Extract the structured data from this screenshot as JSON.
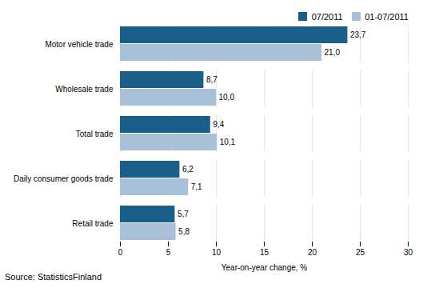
{
  "chart_data": {
    "type": "bar",
    "orientation": "horizontal",
    "categories": [
      "Retail trade",
      "Daily consumer goods trade",
      "Total trade",
      "Wholesale trade",
      "Motor vehicle trade"
    ],
    "series": [
      {
        "name": "07/2011",
        "color": "#1A5F8A",
        "values": [
          5.7,
          6.2,
          9.4,
          8.7,
          23.7
        ],
        "value_labels": [
          "5,7",
          "6,2",
          "9,4",
          "8,7",
          "23,7"
        ]
      },
      {
        "name": "01-07/2011",
        "color": "#A8C0D8",
        "values": [
          5.8,
          7.1,
          10.1,
          10.0,
          21.0
        ],
        "value_labels": [
          "5,8",
          "7,1",
          "10,1",
          "10,0",
          "21,0"
        ]
      }
    ],
    "xlabel": "Year-on-year change, %",
    "xlim": [
      0,
      30
    ],
    "xticks": [
      0,
      5,
      10,
      15,
      20,
      25,
      30
    ],
    "grid": true,
    "legend": "right",
    "data_labels": true,
    "source": "Source: StatisticsFinland"
  }
}
